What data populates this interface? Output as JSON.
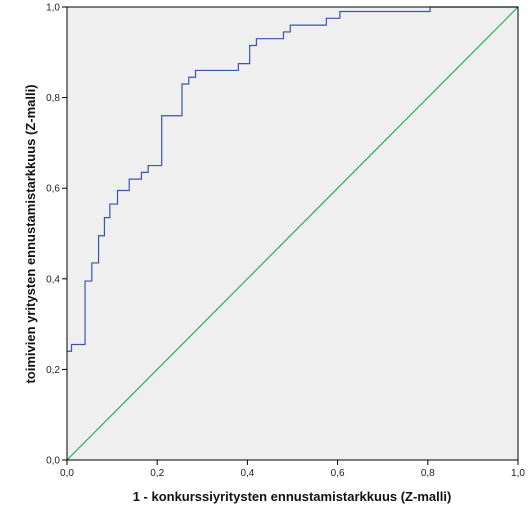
{
  "chart_data": {
    "type": "line",
    "title": "",
    "xlabel": "1 - konkurssiyritysten ennustamistarkkuus (Z-malli)",
    "ylabel": "toimivien yritysten ennustamistarkkuus (Z-malli)",
    "xlim": [
      0,
      1
    ],
    "ylim": [
      0,
      1
    ],
    "xticks": [
      0,
      0.2,
      0.4,
      0.6,
      0.8,
      1.0
    ],
    "yticks": [
      0,
      0.2,
      0.4,
      0.6,
      0.8,
      1.0
    ],
    "xtick_labels": [
      "0,0",
      "0,2",
      "0,4",
      "0,6",
      "0,8",
      "1,0"
    ],
    "ytick_labels": [
      "0,0",
      "0,2",
      "0,4",
      "0,6",
      "0,8",
      "1,0"
    ],
    "grid": false,
    "legend": "none",
    "plot_background": "#efefef",
    "series": [
      {
        "color": "#3a56a6",
        "style": "step",
        "x": [
          0.0,
          0.01,
          0.01,
          0.04,
          0.04,
          0.055,
          0.055,
          0.07,
          0.07,
          0.083,
          0.083,
          0.095,
          0.095,
          0.112,
          0.112,
          0.138,
          0.138,
          0.165,
          0.165,
          0.18,
          0.18,
          0.21,
          0.21,
          0.255,
          0.255,
          0.27,
          0.27,
          0.285,
          0.285,
          0.38,
          0.38,
          0.405,
          0.405,
          0.42,
          0.42,
          0.48,
          0.48,
          0.495,
          0.495,
          0.575,
          0.575,
          0.605,
          0.605,
          0.805,
          0.805,
          1.0
        ],
        "y": [
          0.24,
          0.24,
          0.255,
          0.255,
          0.395,
          0.395,
          0.435,
          0.435,
          0.495,
          0.495,
          0.535,
          0.535,
          0.565,
          0.565,
          0.595,
          0.595,
          0.62,
          0.62,
          0.635,
          0.635,
          0.65,
          0.65,
          0.76,
          0.76,
          0.83,
          0.83,
          0.845,
          0.845,
          0.86,
          0.86,
          0.875,
          0.875,
          0.915,
          0.915,
          0.93,
          0.93,
          0.945,
          0.945,
          0.96,
          0.96,
          0.975,
          0.975,
          0.99,
          0.99,
          1.0,
          1.0
        ]
      },
      {
        "color": "#22b24c",
        "style": "line",
        "x": [
          0,
          1
        ],
        "y": [
          0,
          1
        ]
      }
    ]
  }
}
